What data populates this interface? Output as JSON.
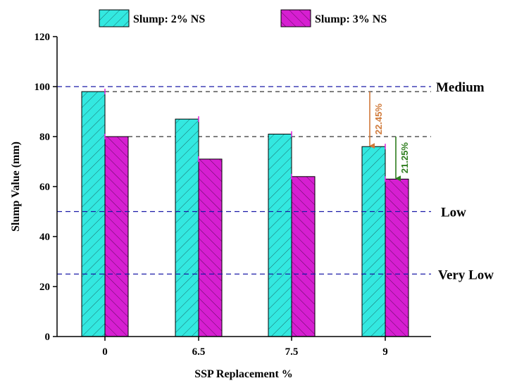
{
  "chart_data": {
    "type": "bar",
    "title": "",
    "xlabel": "SSP Replacement %",
    "ylabel": "Slump Value (mm)",
    "categories": [
      "0",
      "6.5",
      "7.5",
      "9"
    ],
    "ylim": [
      0,
      120
    ],
    "yticks": [
      "0",
      "20",
      "40",
      "60",
      "80",
      "100",
      "120"
    ],
    "legend_position": "top",
    "series": [
      {
        "name": "Slump: 2% NS",
        "values": [
          98,
          87,
          81,
          76
        ],
        "color": "#33e8e0"
      },
      {
        "name": "Slump: 3% NS",
        "values": [
          80,
          71,
          64,
          63
        ],
        "color": "#d61fd1"
      }
    ],
    "reference_lines": [
      {
        "label": "Medium",
        "value": 100
      },
      {
        "label": "Low",
        "value": 50
      },
      {
        "label": "Very Low",
        "value": 25
      }
    ],
    "guide_lines": [
      98,
      80
    ],
    "annotations": [
      {
        "text": "22.45%",
        "from": 98,
        "to": 76,
        "color": "#d07a3a"
      },
      {
        "text": "21.25%",
        "from": 80,
        "to": 63,
        "color": "#2e7d1e"
      }
    ],
    "grid": false
  }
}
